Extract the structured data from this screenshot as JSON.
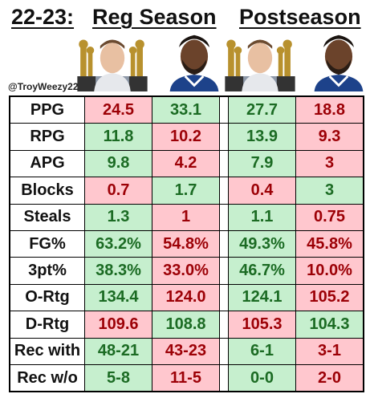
{
  "header": {
    "season": "22-23:",
    "reg_label": "Reg Season",
    "post_label": "Postseason"
  },
  "handle": "@TroyWeezy22",
  "photos": [
    {
      "icon": "jokic-with-trophies-photo"
    },
    {
      "icon": "embiid-photo"
    },
    {
      "icon": "jokic-with-trophies-photo"
    },
    {
      "icon": "embiid-photo"
    }
  ],
  "colors": {
    "good_bg": "#c6efce",
    "good_text": "#1b6b23",
    "bad_bg": "#ffc7ce",
    "bad_text": "#9c0006"
  },
  "rows": [
    {
      "label": "PPG",
      "cells": [
        {
          "v": "24.5",
          "c": "r"
        },
        {
          "v": "33.1",
          "c": "g"
        },
        {
          "v": "27.7",
          "c": "g"
        },
        {
          "v": "18.8",
          "c": "r"
        }
      ]
    },
    {
      "label": "RPG",
      "cells": [
        {
          "v": "11.8",
          "c": "g"
        },
        {
          "v": "10.2",
          "c": "r"
        },
        {
          "v": "13.9",
          "c": "g"
        },
        {
          "v": "9.3",
          "c": "r"
        }
      ]
    },
    {
      "label": "APG",
      "cells": [
        {
          "v": "9.8",
          "c": "g"
        },
        {
          "v": "4.2",
          "c": "r"
        },
        {
          "v": "7.9",
          "c": "g"
        },
        {
          "v": "3",
          "c": "r"
        }
      ]
    },
    {
      "label": "Blocks",
      "cells": [
        {
          "v": "0.7",
          "c": "r"
        },
        {
          "v": "1.7",
          "c": "g"
        },
        {
          "v": "0.4",
          "c": "r"
        },
        {
          "v": "3",
          "c": "g"
        }
      ]
    },
    {
      "label": "Steals",
      "cells": [
        {
          "v": "1.3",
          "c": "g"
        },
        {
          "v": "1",
          "c": "r"
        },
        {
          "v": "1.1",
          "c": "g"
        },
        {
          "v": "0.75",
          "c": "r"
        }
      ]
    },
    {
      "label": "FG%",
      "cells": [
        {
          "v": "63.2%",
          "c": "g"
        },
        {
          "v": "54.8%",
          "c": "r"
        },
        {
          "v": "49.3%",
          "c": "g"
        },
        {
          "v": "45.8%",
          "c": "r"
        }
      ]
    },
    {
      "label": "3pt%",
      "cells": [
        {
          "v": "38.3%",
          "c": "g"
        },
        {
          "v": "33.0%",
          "c": "r"
        },
        {
          "v": "46.7%",
          "c": "g"
        },
        {
          "v": "10.0%",
          "c": "r"
        }
      ]
    },
    {
      "label": "O-Rtg",
      "cells": [
        {
          "v": "134.4",
          "c": "g"
        },
        {
          "v": "124.0",
          "c": "r"
        },
        {
          "v": "124.1",
          "c": "g"
        },
        {
          "v": "105.2",
          "c": "r"
        }
      ]
    },
    {
      "label": "D-Rtg",
      "cells": [
        {
          "v": "109.6",
          "c": "r"
        },
        {
          "v": "108.8",
          "c": "g"
        },
        {
          "v": "105.3",
          "c": "r"
        },
        {
          "v": "104.3",
          "c": "g"
        }
      ]
    },
    {
      "label": "Rec with",
      "cells": [
        {
          "v": "48-21",
          "c": "g"
        },
        {
          "v": "43-23",
          "c": "r"
        },
        {
          "v": "6-1",
          "c": "g"
        },
        {
          "v": "3-1",
          "c": "r"
        }
      ]
    },
    {
      "label": "Rec w/o",
      "cells": [
        {
          "v": "5-8",
          "c": "g"
        },
        {
          "v": "11-5",
          "c": "r"
        },
        {
          "v": "0-0",
          "c": "g"
        },
        {
          "v": "2-0",
          "c": "r"
        }
      ]
    }
  ]
}
